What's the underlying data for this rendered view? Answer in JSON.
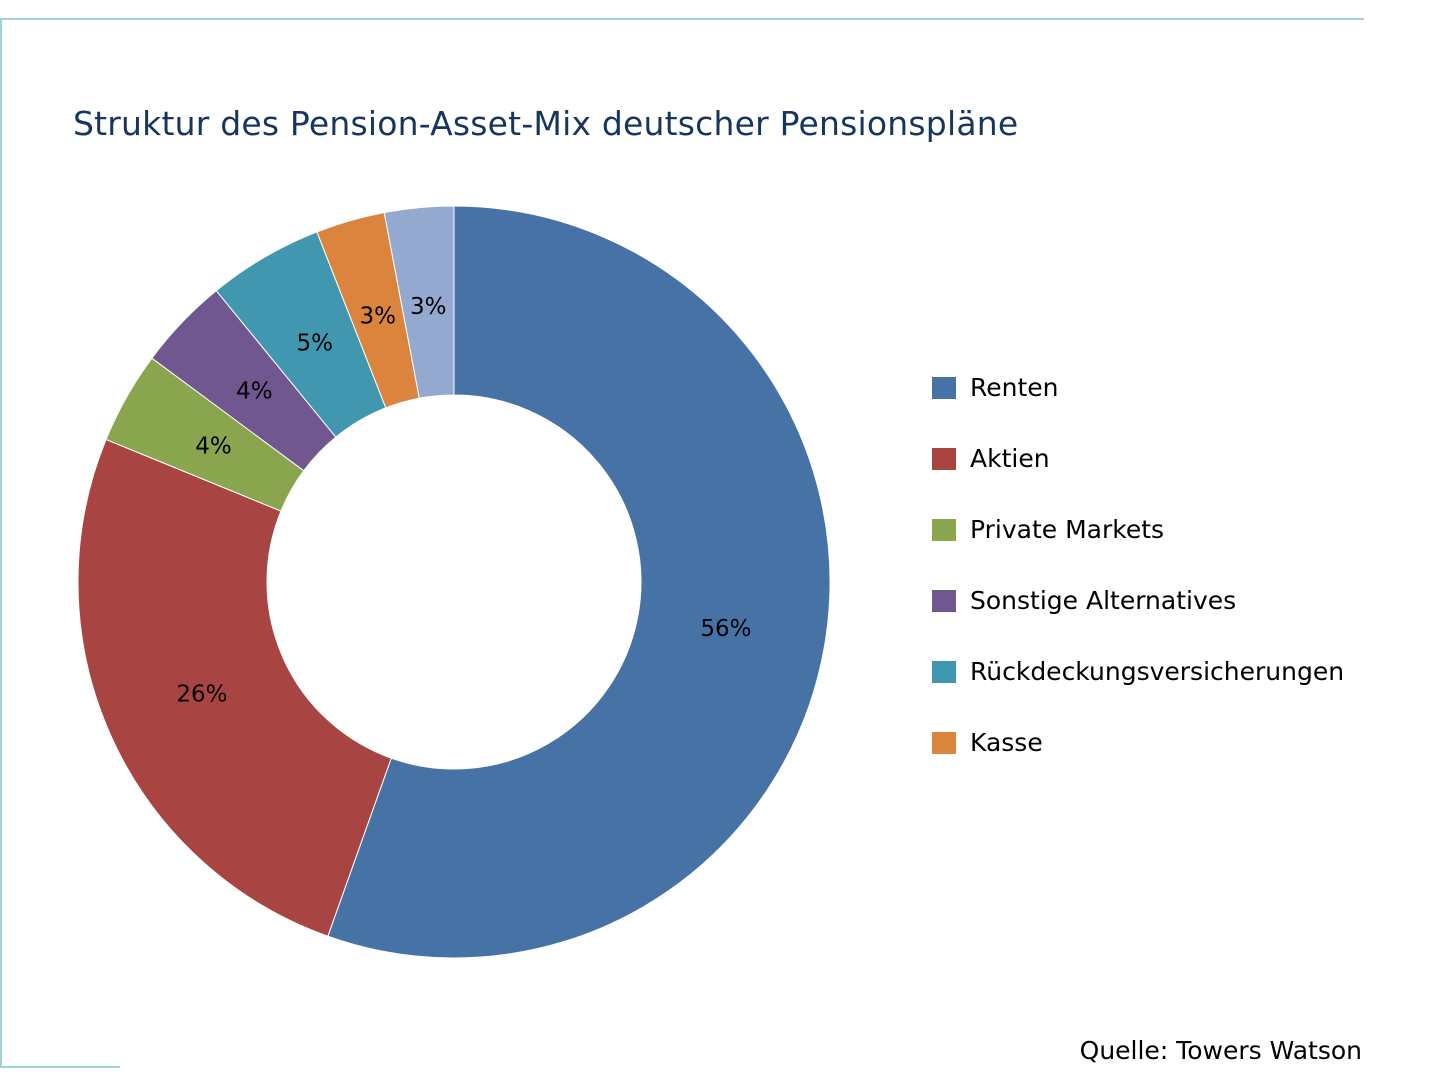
{
  "chart_data": {
    "type": "pie",
    "subtype": "donut",
    "title": "Struktur des Pension-Asset-Mix deutscher Pensionspläne",
    "source": "Quelle: Towers Watson",
    "legend_position": "right",
    "slices": [
      {
        "label": "Renten",
        "value": 56,
        "display": "56%",
        "color": "#4672a5"
      },
      {
        "label": "Aktien",
        "value": 26,
        "display": "26%",
        "color": "#a84542"
      },
      {
        "label": "Private Markets",
        "value": 4,
        "display": "4%",
        "color": "#89a54e"
      },
      {
        "label": "Sonstige Alternatives",
        "value": 4,
        "display": "4%",
        "color": "#71578f"
      },
      {
        "label": "Rückdeckungsversicherungen",
        "value": 5,
        "display": "5%",
        "color": "#4197af"
      },
      {
        "label": "Kasse",
        "value": 3,
        "display": "3%",
        "color": "#db843d"
      },
      {
        "label": "",
        "value": 3,
        "display": "3%",
        "color": "#93a9cf"
      }
    ]
  }
}
